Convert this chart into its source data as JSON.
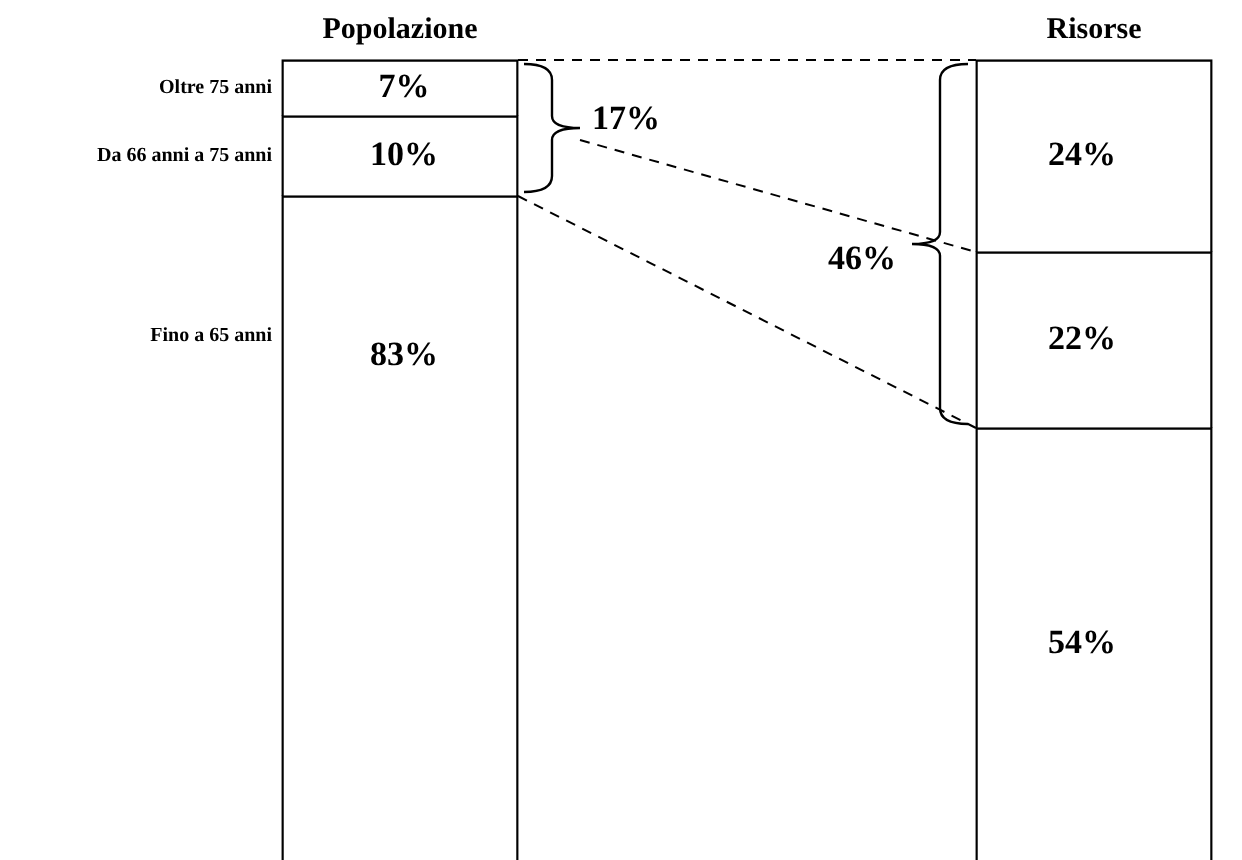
{
  "chart_data": {
    "type": "bar",
    "stacked": true,
    "categories": [
      "Popolazione",
      "Risorse"
    ],
    "ylim": [
      0,
      100
    ],
    "tick_labels": "x",
    "grid": false,
    "legend": false,
    "series": [
      {
        "name": "Fino a 65 anni",
        "color": "#ffffff",
        "values": [
          83,
          54
        ],
        "value_labels": [
          "83%",
          "54%"
        ]
      },
      {
        "name": "Da 66 anni a 75 anni",
        "color": "#ffffff",
        "values": [
          10,
          22
        ],
        "value_labels": [
          "10%",
          "22%"
        ]
      },
      {
        "name": "Oltre 75 anni",
        "color": "#ffffff",
        "values": [
          7,
          24
        ],
        "value_labels": [
          "7%",
          "24%"
        ]
      }
    ],
    "annotations": [
      "17%",
      "46%"
    ]
  }
}
